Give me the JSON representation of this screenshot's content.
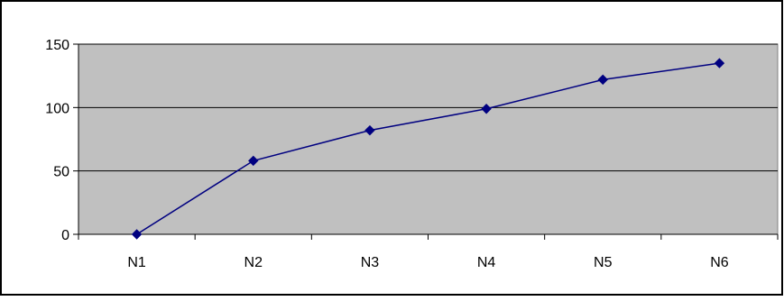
{
  "chart_data": {
    "type": "line",
    "categories": [
      "N1",
      "N2",
      "N3",
      "N4",
      "N5",
      "N6"
    ],
    "series": [
      {
        "values": [
          0,
          58,
          82,
          99,
          122,
          135
        ]
      }
    ],
    "title": "",
    "xlabel": "",
    "ylabel": "",
    "ylim": [
      0,
      150
    ],
    "yticks": [
      "0",
      "50",
      "100",
      "150"
    ],
    "grid": "horizontal",
    "legend": "none",
    "colors": {
      "plot_background": "#c0c0c0",
      "line": "#000080",
      "marker": "#000080",
      "gridline": "#000000",
      "frame": "#000000"
    },
    "marker": "diamond-icon"
  }
}
